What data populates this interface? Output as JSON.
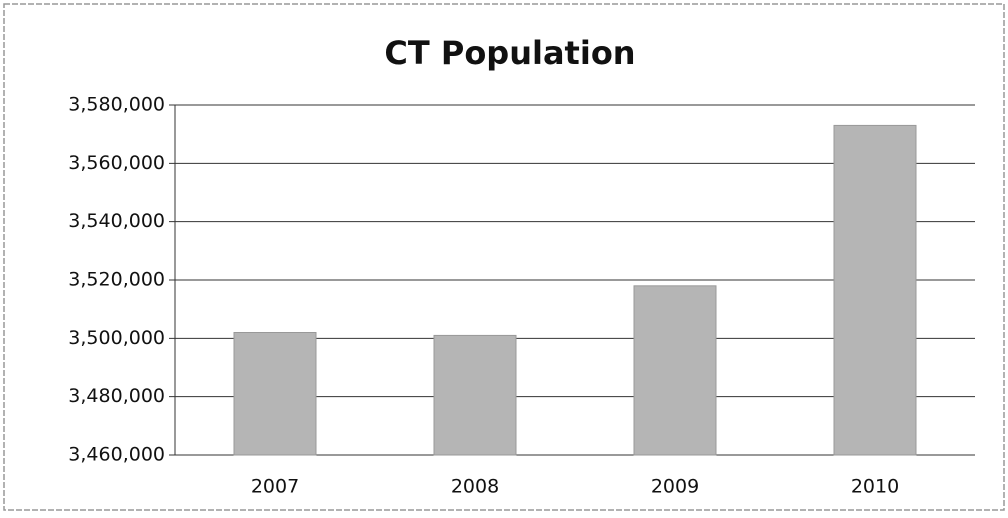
{
  "chart_data": {
    "type": "bar",
    "title": "CT Population",
    "categories": [
      "2007",
      "2008",
      "2009",
      "2010"
    ],
    "values": [
      3502000,
      3501000,
      3518000,
      3573000
    ],
    "color": "#b5b5b5",
    "ylim": [
      3460000,
      3580000
    ],
    "yticks": [
      {
        "value": 3460000,
        "label": "3,460,000"
      },
      {
        "value": 3480000,
        "label": "3,480,000"
      },
      {
        "value": 3500000,
        "label": "3,500,000"
      },
      {
        "value": 3520000,
        "label": "3,520,000"
      },
      {
        "value": 3540000,
        "label": "3,540,000"
      },
      {
        "value": 3560000,
        "label": "3,560,000"
      },
      {
        "value": 3580000,
        "label": "3,580,000"
      }
    ],
    "grid": true
  }
}
